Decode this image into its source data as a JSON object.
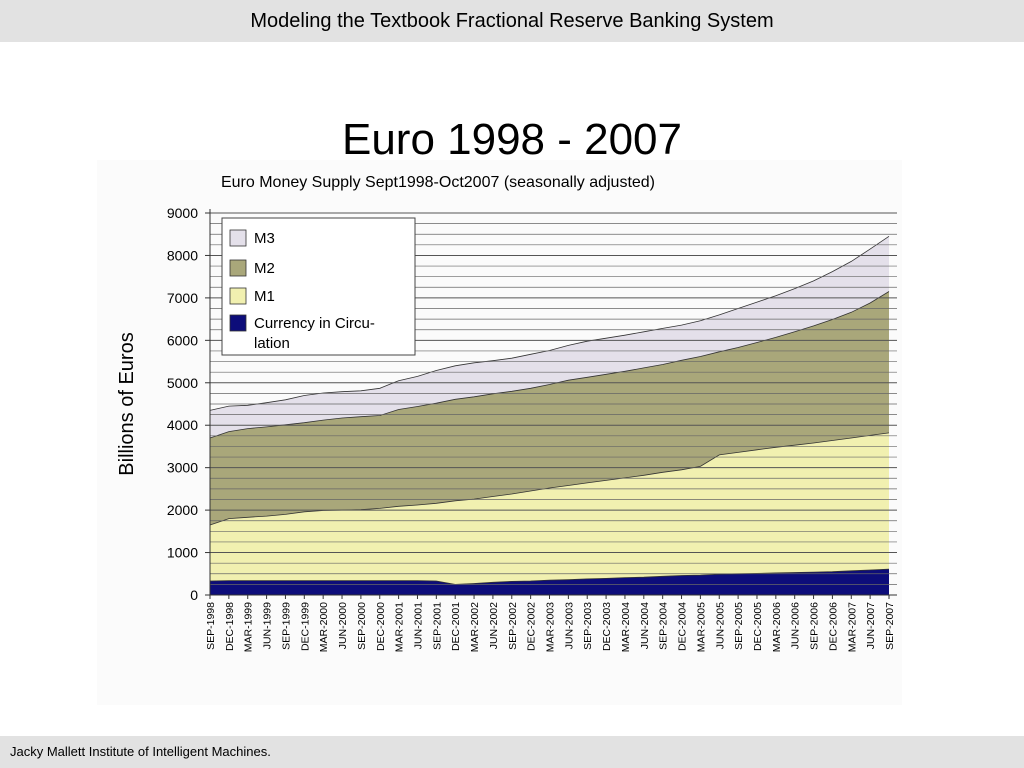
{
  "header": {
    "title": "Modeling the Textbook Fractional Reserve Banking System"
  },
  "slide": {
    "title": "Euro 1998 - 2007"
  },
  "footer": {
    "text": "Jacky Mallett Institute of Intelligent Machines."
  },
  "chart_data": {
    "type": "area",
    "stacked": false,
    "title": "Euro Money Supply Sept1998-Oct2007 (seasonally adjusted)",
    "ylabel": "Billions of Euros",
    "xlabel": "",
    "ylim": [
      0,
      9000
    ],
    "yticks": [
      0,
      1000,
      2000,
      3000,
      4000,
      5000,
      6000,
      7000,
      8000,
      9000
    ],
    "grid": true,
    "legend_position": "top-left",
    "categories": [
      "SEP-1998",
      "DEC-1998",
      "MAR-1999",
      "JUN-1999",
      "SEP-1999",
      "DEC-1999",
      "MAR-2000",
      "JUN-2000",
      "SEP-2000",
      "DEC-2000",
      "MAR-2001",
      "JUN-2001",
      "SEP-2001",
      "DEC-2001",
      "MAR-2002",
      "JUN-2002",
      "SEP-2002",
      "DEC-2002",
      "MAR-2003",
      "JUN-2003",
      "SEP-2003",
      "DEC-2003",
      "MAR-2004",
      "JUN-2004",
      "SEP-2004",
      "DEC-2004",
      "MAR-2005",
      "JUN-2005",
      "SEP-2005",
      "DEC-2005",
      "MAR-2006",
      "JUN-2006",
      "SEP-2006",
      "DEC-2006",
      "MAR-2007",
      "JUN-2007",
      "SEP-2007"
    ],
    "series": [
      {
        "name": "M3",
        "color": "#e4e0ea",
        "values": [
          4350,
          4450,
          4470,
          4530,
          4600,
          4700,
          4760,
          4790,
          4810,
          4870,
          5050,
          5150,
          5290,
          5400,
          5470,
          5520,
          5580,
          5670,
          5760,
          5880,
          5980,
          6050,
          6120,
          6200,
          6280,
          6360,
          6460,
          6600,
          6750,
          6900,
          7050,
          7220,
          7400,
          7620,
          7860,
          8150,
          8450
        ]
      },
      {
        "name": "M2",
        "color": "#a9a77a",
        "values": [
          3700,
          3850,
          3920,
          3960,
          4010,
          4060,
          4120,
          4170,
          4200,
          4230,
          4370,
          4440,
          4520,
          4610,
          4670,
          4740,
          4800,
          4870,
          4960,
          5060,
          5130,
          5200,
          5270,
          5350,
          5430,
          5530,
          5620,
          5730,
          5830,
          5950,
          6070,
          6200,
          6340,
          6490,
          6660,
          6880,
          7150
        ]
      },
      {
        "name": "M1",
        "color": "#f1f0b0",
        "values": [
          1650,
          1800,
          1830,
          1860,
          1900,
          1960,
          1990,
          2000,
          2010,
          2040,
          2090,
          2120,
          2160,
          2220,
          2260,
          2320,
          2380,
          2450,
          2520,
          2580,
          2640,
          2700,
          2760,
          2820,
          2890,
          2950,
          3030,
          3300,
          3360,
          3420,
          3480,
          3530,
          3580,
          3640,
          3700,
          3760,
          3820
        ]
      },
      {
        "name": "Currency in Circulation",
        "color": "#0d0d7a",
        "values": [
          330,
          340,
          340,
          340,
          340,
          340,
          340,
          340,
          340,
          340,
          340,
          340,
          330,
          250,
          270,
          300,
          320,
          330,
          350,
          360,
          380,
          390,
          410,
          420,
          440,
          460,
          470,
          490,
          500,
          510,
          520,
          530,
          540,
          550,
          570,
          590,
          610
        ]
      }
    ]
  }
}
